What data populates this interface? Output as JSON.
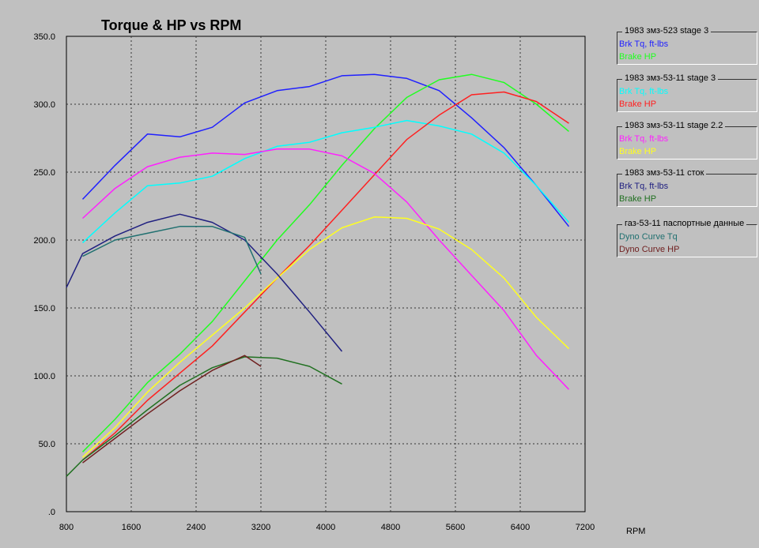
{
  "chart_data": {
    "type": "line",
    "title": "Torque & HP vs RPM",
    "xlabel": "RPM",
    "ylabel": "",
    "xlim": [
      800,
      7200
    ],
    "ylim": [
      0,
      350
    ],
    "x_ticks": [
      800,
      1600,
      2400,
      3200,
      4000,
      4800,
      5600,
      6400,
      7200
    ],
    "y_ticks": [
      0,
      50,
      100,
      150,
      200,
      250,
      300,
      350
    ],
    "x_tick_labels": [
      "800",
      "1600",
      "2400",
      "3200",
      "4000",
      "4800",
      "5600",
      "6400",
      "7200"
    ],
    "y_tick_labels": [
      ".0",
      "50.0",
      "100.0",
      "150.0",
      "200.0",
      "250.0",
      "300.0",
      "350.0"
    ],
    "grid": true,
    "legend_position": "right",
    "legend_groups": [
      {
        "title": "1983 змз-523 stage 3",
        "entries": [
          {
            "label": "Brk Tq, ft-lbs",
            "color": "#2020ff"
          },
          {
            "label": "Brake HP",
            "color": "#20ff20"
          }
        ]
      },
      {
        "title": "1983 змз-53-11 stage 3",
        "entries": [
          {
            "label": "Brk Tq, ft-lbs",
            "color": "#00ffff"
          },
          {
            "label": "Brake HP",
            "color": "#ff2020"
          }
        ]
      },
      {
        "title": "1983 змз-53-11 stage 2.2",
        "entries": [
          {
            "label": "Brk Tq, ft-lbs",
            "color": "#ff20ff"
          },
          {
            "label": "Brake HP",
            "color": "#ffff20"
          }
        ]
      },
      {
        "title": "1983 змз-53-11 сток",
        "entries": [
          {
            "label": "Brk Tq, ft-lbs",
            "color": "#202080"
          },
          {
            "label": "Brake HP",
            "color": "#207020"
          }
        ]
      },
      {
        "title": "газ-53-11 паспортные данные",
        "entries": [
          {
            "label": "Dyno Curve Tq",
            "color": "#207070"
          },
          {
            "label": "Dyno Curve HP",
            "color": "#702020"
          }
        ]
      }
    ],
    "series": [
      {
        "color": "#2020ff",
        "x": [
          1000,
          1400,
          1800,
          2200,
          2600,
          3000,
          3400,
          3800,
          4200,
          4600,
          5000,
          5400,
          5800,
          6200,
          6600,
          7000
        ],
        "y": [
          230,
          255,
          278,
          276,
          283,
          301,
          310,
          313,
          321,
          322,
          319,
          310,
          290,
          268,
          240,
          210
        ]
      },
      {
        "color": "#20ff20",
        "x": [
          1000,
          1400,
          1800,
          2200,
          2600,
          3000,
          3400,
          3800,
          4200,
          4600,
          5000,
          5400,
          5800,
          6200,
          6600,
          7000
        ],
        "y": [
          44,
          68,
          95,
          116,
          140,
          170,
          200,
          226,
          255,
          282,
          305,
          318,
          322,
          316,
          300,
          280
        ]
      },
      {
        "color": "#00ffff",
        "x": [
          1000,
          1400,
          1800,
          2200,
          2600,
          3000,
          3400,
          3800,
          4200,
          4600,
          5000,
          5400,
          5800,
          6200,
          6600,
          7000
        ],
        "y": [
          198,
          220,
          240,
          242,
          247,
          260,
          269,
          272,
          279,
          283,
          288,
          284,
          278,
          264,
          240,
          213
        ]
      },
      {
        "color": "#ff2020",
        "x": [
          1000,
          1400,
          1800,
          2200,
          2600,
          3000,
          3400,
          3800,
          4200,
          4600,
          5000,
          5400,
          5800,
          6200,
          6600,
          7000
        ],
        "y": [
          38,
          58,
          82,
          102,
          122,
          147,
          172,
          196,
          222,
          248,
          274,
          292,
          307,
          309,
          302,
          286
        ]
      },
      {
        "color": "#ff20ff",
        "x": [
          1000,
          1400,
          1800,
          2200,
          2600,
          3000,
          3400,
          3800,
          4200,
          4600,
          5000,
          5400,
          5800,
          6200,
          6600,
          7000
        ],
        "y": [
          216,
          238,
          254,
          261,
          264,
          263,
          267,
          267,
          262,
          249,
          228,
          200,
          174,
          148,
          115,
          90
        ]
      },
      {
        "color": "#ffff20",
        "x": [
          1000,
          1400,
          1800,
          2200,
          2600,
          3000,
          3400,
          3800,
          4200,
          4600,
          5000,
          5400,
          5800,
          6200,
          6600,
          7000
        ],
        "y": [
          40,
          62,
          88,
          110,
          130,
          150,
          172,
          193,
          209,
          217,
          216,
          208,
          193,
          172,
          143,
          120
        ]
      },
      {
        "color": "#202080",
        "x": [
          800,
          1000,
          1400,
          1800,
          2200,
          2600,
          3000,
          3400,
          3800,
          4200
        ],
        "y": [
          165,
          190,
          203,
          213,
          219,
          213,
          200,
          175,
          147,
          118
        ]
      },
      {
        "color": "#207020",
        "x": [
          800,
          1000,
          1400,
          1800,
          2200,
          2600,
          3000,
          3400,
          3800,
          4200
        ],
        "y": [
          26,
          38,
          56,
          75,
          93,
          106,
          114,
          113,
          107,
          94
        ]
      },
      {
        "color": "#207070",
        "x": [
          1000,
          1400,
          1800,
          2200,
          2600,
          3000,
          3200
        ],
        "y": [
          188,
          200,
          205,
          210,
          210,
          202,
          175
        ]
      },
      {
        "color": "#702020",
        "x": [
          1000,
          1400,
          1800,
          2200,
          2600,
          3000,
          3200
        ],
        "y": [
          36,
          54,
          72,
          89,
          104,
          115,
          107
        ]
      }
    ]
  }
}
